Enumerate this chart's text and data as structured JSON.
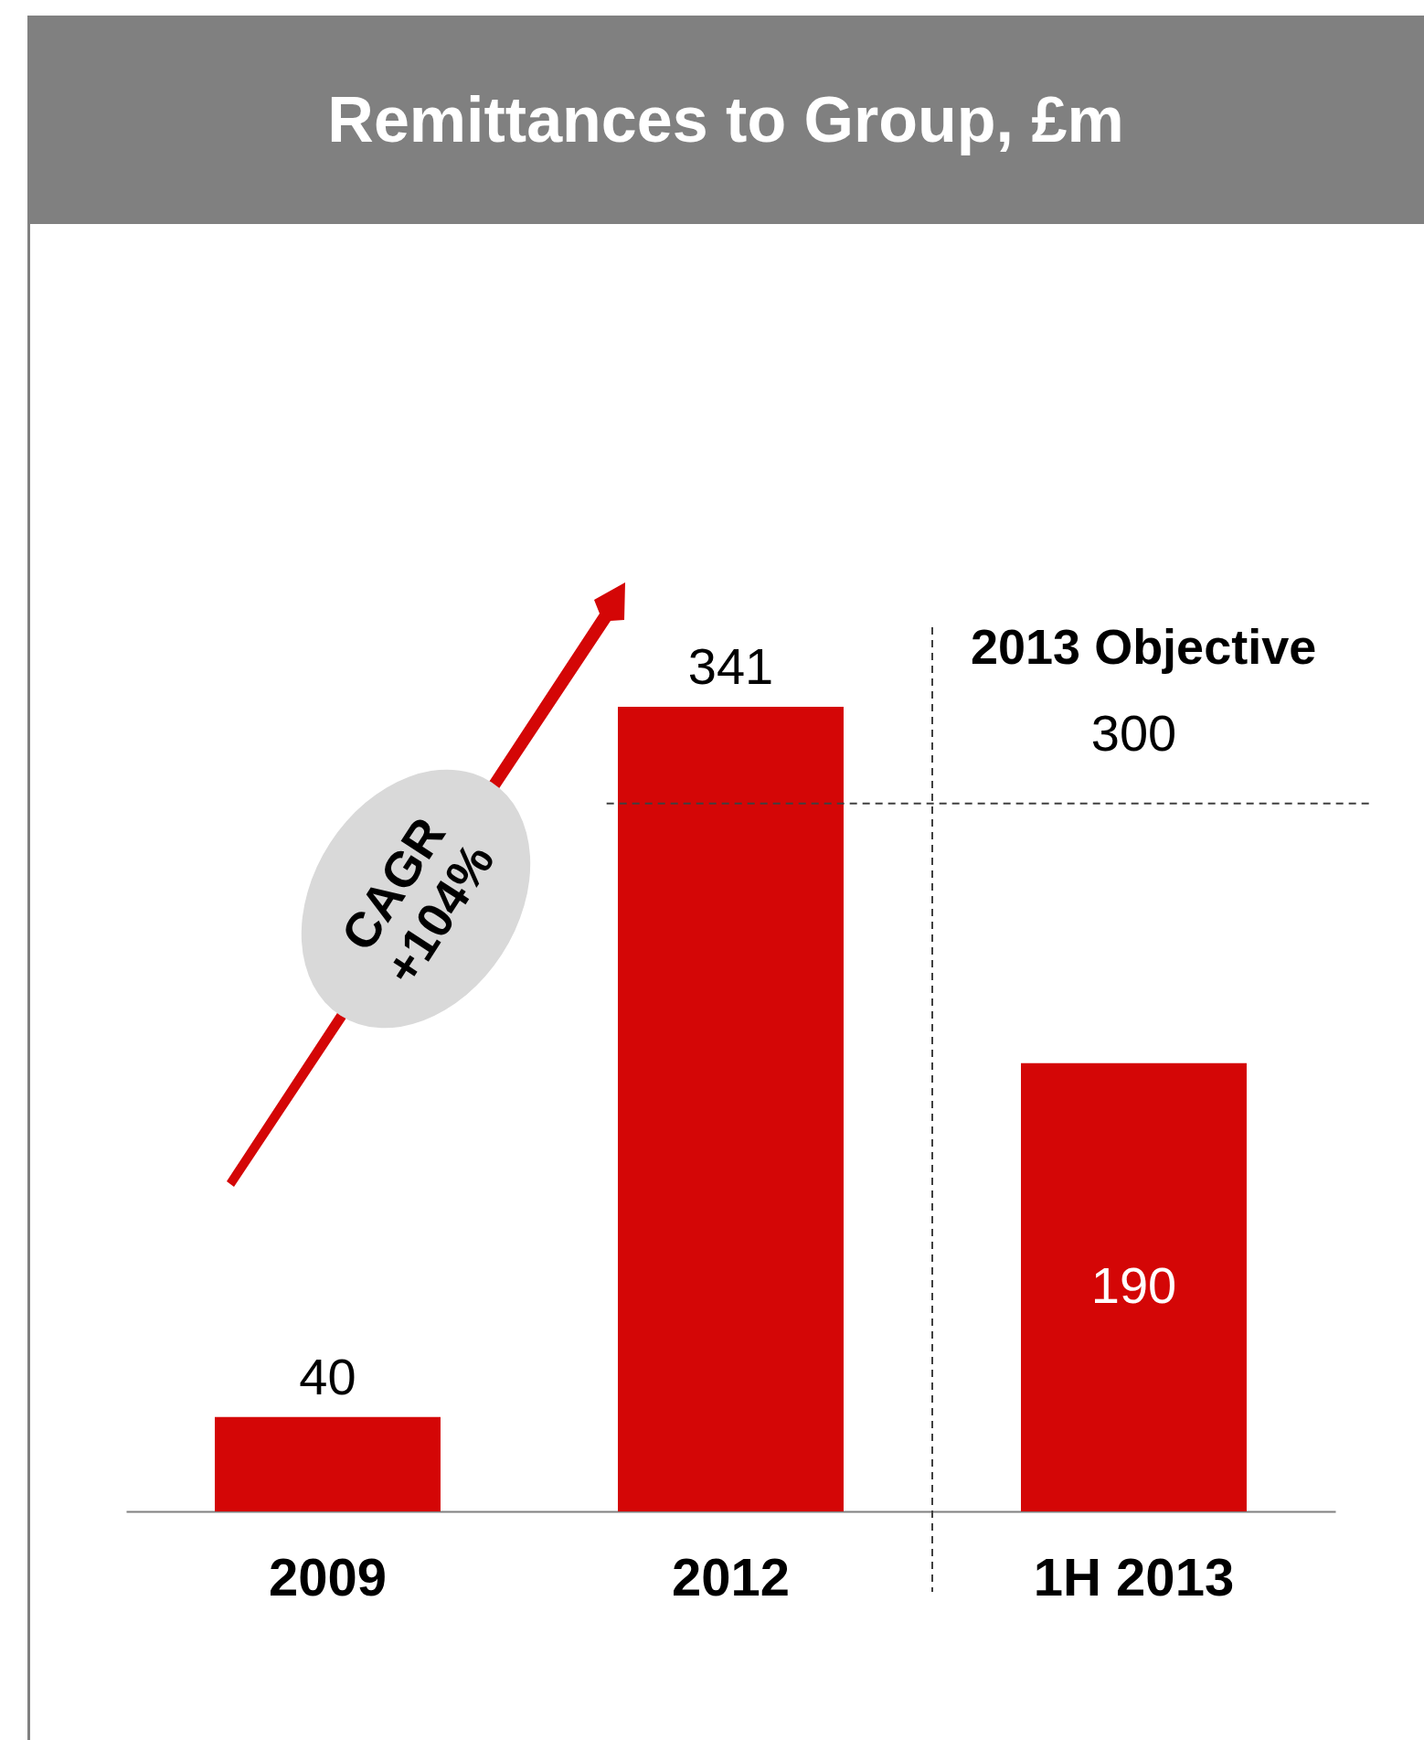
{
  "chart_data": {
    "type": "bar",
    "title": "Remittances to Group, £m",
    "categories": [
      "2009",
      "2012",
      "1H 2013"
    ],
    "values": [
      40,
      341,
      190
    ],
    "color": "#d40606",
    "data_labels": true,
    "ref_lines": [
      {
        "axis": "y",
        "value": 300,
        "label": "300",
        "line_style": "dashed",
        "color": "#404040"
      }
    ],
    "annotations": [
      "CAGR +104%",
      "2013 Objective"
    ]
  }
}
